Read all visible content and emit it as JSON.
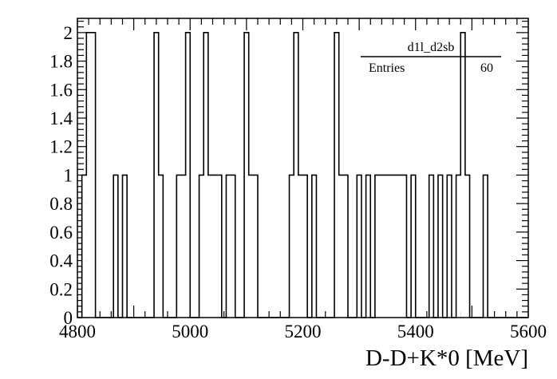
{
  "chart_data": {
    "type": "histogram",
    "title": "",
    "xlabel": "D-D+K*0 [MeV]",
    "ylabel": "",
    "xlim": [
      4800,
      5600
    ],
    "ylim": [
      0,
      2.1
    ],
    "bin_width": 8,
    "x_ticks": [
      4800,
      5000,
      5200,
      5400,
      5600
    ],
    "x_tick_labels": [
      "4800",
      "5000",
      "5200",
      "5400",
      "5600"
    ],
    "y_ticks": [
      0,
      0.2,
      0.4,
      0.6,
      0.8,
      1,
      1.2,
      1.4,
      1.6,
      1.8,
      2
    ],
    "y_tick_labels": [
      "0",
      "0.2",
      "0.4",
      "0.6",
      "0.8",
      "1",
      "1.2",
      "1.4",
      "1.6",
      "1.8",
      "2"
    ],
    "grid": false,
    "legend": {
      "position": "top-right",
      "name": "d1l_d2sb",
      "entries_label": "Entries",
      "entries_value": "60"
    },
    "bins": [
      {
        "x": 4808,
        "value": 1
      },
      {
        "x": 4816,
        "value": 2
      },
      {
        "x": 4824,
        "value": 2
      },
      {
        "x": 4864,
        "value": 1
      },
      {
        "x": 4880,
        "value": 1
      },
      {
        "x": 4936,
        "value": 2
      },
      {
        "x": 4944,
        "value": 1
      },
      {
        "x": 4976,
        "value": 1
      },
      {
        "x": 4984,
        "value": 1
      },
      {
        "x": 4992,
        "value": 2
      },
      {
        "x": 5016,
        "value": 1
      },
      {
        "x": 5024,
        "value": 2
      },
      {
        "x": 5032,
        "value": 1
      },
      {
        "x": 5040,
        "value": 1
      },
      {
        "x": 5048,
        "value": 1
      },
      {
        "x": 5064,
        "value": 1
      },
      {
        "x": 5072,
        "value": 1
      },
      {
        "x": 5096,
        "value": 2
      },
      {
        "x": 5104,
        "value": 1
      },
      {
        "x": 5112,
        "value": 1
      },
      {
        "x": 5176,
        "value": 1
      },
      {
        "x": 5184,
        "value": 2
      },
      {
        "x": 5192,
        "value": 1
      },
      {
        "x": 5200,
        "value": 1
      },
      {
        "x": 5216,
        "value": 1
      },
      {
        "x": 5256,
        "value": 2
      },
      {
        "x": 5264,
        "value": 1
      },
      {
        "x": 5272,
        "value": 1
      },
      {
        "x": 5296,
        "value": 1
      },
      {
        "x": 5312,
        "value": 1
      },
      {
        "x": 5328,
        "value": 1
      },
      {
        "x": 5336,
        "value": 1
      },
      {
        "x": 5344,
        "value": 1
      },
      {
        "x": 5352,
        "value": 1
      },
      {
        "x": 5360,
        "value": 1
      },
      {
        "x": 5368,
        "value": 1
      },
      {
        "x": 5376,
        "value": 1
      },
      {
        "x": 5392,
        "value": 1
      },
      {
        "x": 5424,
        "value": 1
      },
      {
        "x": 5440,
        "value": 1
      },
      {
        "x": 5456,
        "value": 1
      },
      {
        "x": 5472,
        "value": 1
      },
      {
        "x": 5480,
        "value": 2
      },
      {
        "x": 5488,
        "value": 1
      },
      {
        "x": 5520,
        "value": 1
      }
    ]
  }
}
